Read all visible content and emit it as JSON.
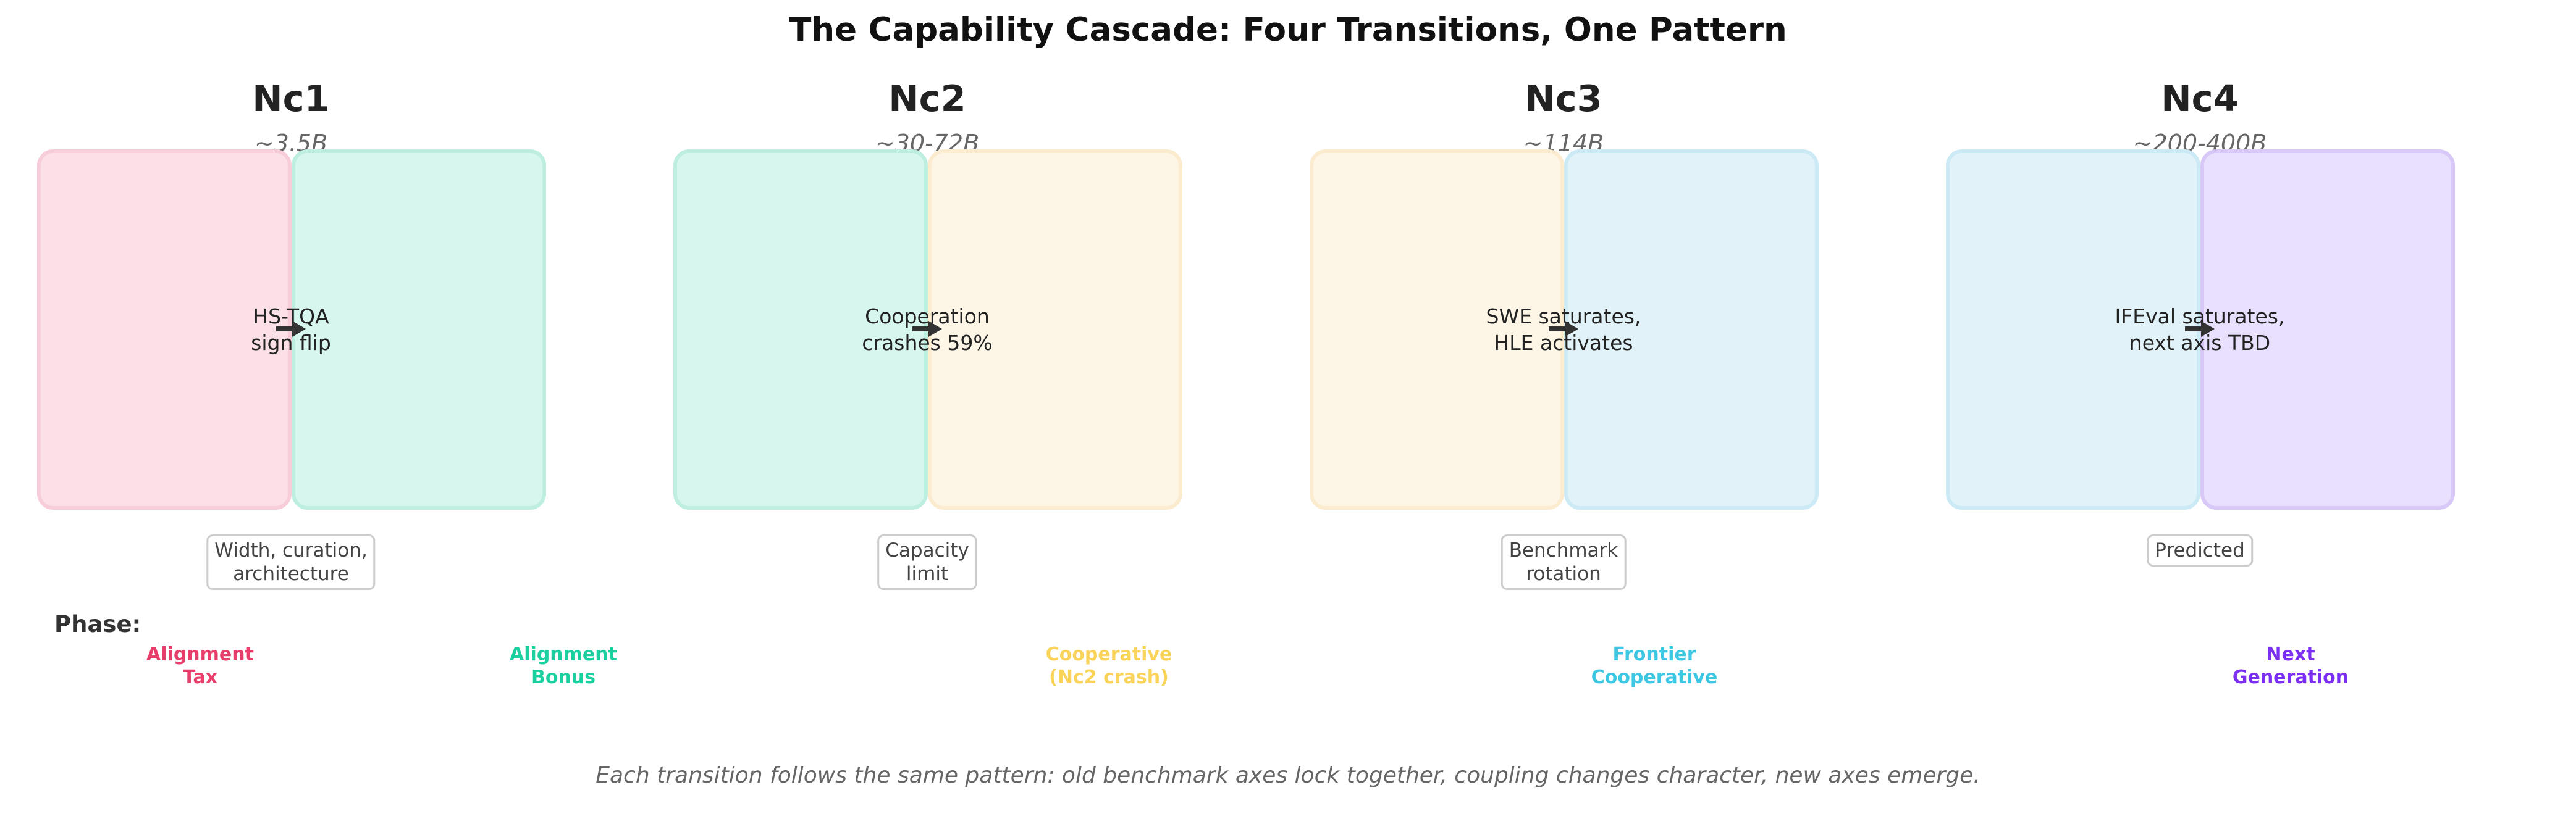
{
  "title": "The Capability Cascade: Four Transitions, One Pattern",
  "transitions": [
    {
      "label": "Nc1",
      "size": "~3.5B",
      "text_line1": "HS-TQA",
      "text_line2": "sign flip",
      "note_line1": "Width, curation,",
      "note_line2": "architecture",
      "left_color": "#fbe0e7",
      "left_border": "#f6cdd8",
      "right_color": "#d7f6ee",
      "right_border": "#bdeee0"
    },
    {
      "label": "Nc2",
      "size": "~30-72B",
      "text_line1": "Cooperation",
      "text_line2": "crashes 59%",
      "note_line1": "Capacity",
      "note_line2": "limit",
      "left_color": "#d7f6ee",
      "left_border": "#bdeee0",
      "right_color": "#fdf6e6",
      "right_border": "#fbecd0"
    },
    {
      "label": "Nc3",
      "size": "~114B",
      "text_line1": "SWE saturates,",
      "text_line2": "HLE activates",
      "note_line1": "Benchmark",
      "note_line2": "rotation",
      "left_color": "#fdf6e6",
      "left_border": "#fbecd0",
      "right_color": "#e1f3f9",
      "right_border": "#cceaf5"
    },
    {
      "label": "Nc4",
      "size": "~200-400B",
      "text_line1": "IFEval saturates,",
      "text_line2": "next axis TBD",
      "note_line1": "Predicted",
      "note_line2": "",
      "left_color": "#e1f3f9",
      "left_border": "#cceaf5",
      "right_color": "#e9e0fd",
      "right_border": "#d8c8f7"
    }
  ],
  "phase": {
    "heading": "Phase:",
    "items": [
      {
        "line1": "Alignment",
        "line2": "Tax",
        "color": "#e83e6c"
      },
      {
        "line1": "Alignment",
        "line2": "Bonus",
        "color": "#1ccf9e"
      },
      {
        "line1": "Cooperative",
        "line2": "(Nc2 crash)",
        "color": "#f9d35a"
      },
      {
        "line1": "Frontier",
        "line2": "Cooperative",
        "color": "#3ec7e2"
      },
      {
        "line1": "Next",
        "line2": "Generation",
        "color": "#7b2ff2"
      }
    ]
  },
  "footer": "Each transition follows the same pattern: old benchmark axes lock together, coupling changes character, new axes emerge."
}
